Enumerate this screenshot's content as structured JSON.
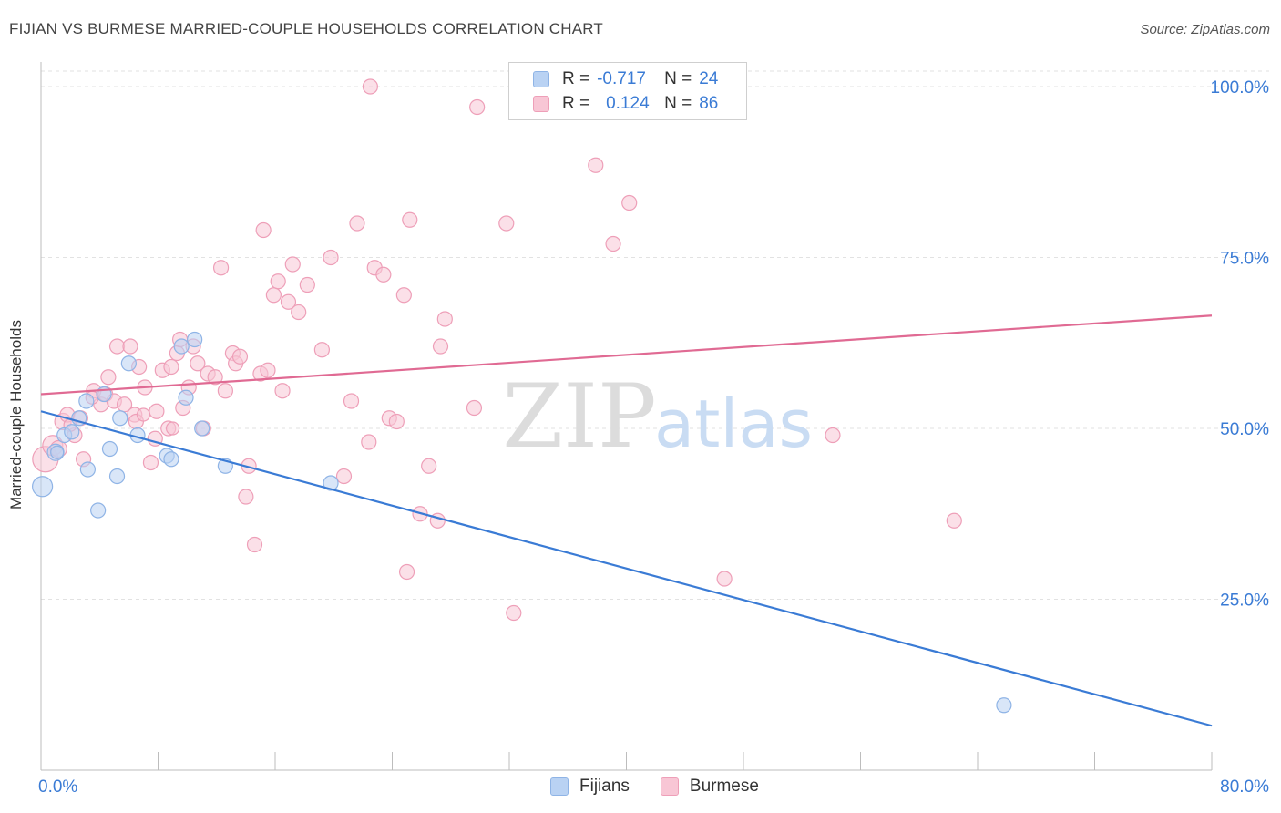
{
  "header": {
    "title": "FIJIAN VS BURMESE MARRIED-COUPLE HOUSEHOLDS CORRELATION CHART",
    "source": "Source: ZipAtlas.com"
  },
  "watermark": {
    "zip": "ZIP",
    "atlas": "atlas"
  },
  "legend": {
    "r_label": "R =",
    "n_label": "N =",
    "rows": [
      {
        "name": "Fijians",
        "r": "-0.717",
        "n": "24"
      },
      {
        "name": "Burmese",
        "r": "0.124",
        "n": "86"
      }
    ]
  },
  "colors": {
    "fijians_fill": "#b9d2f3",
    "fijians_stroke": "#8fb4e6",
    "fijians_line": "#3a7bd5",
    "burmese_fill": "#f8c6d5",
    "burmese_stroke": "#ee9fb8",
    "burmese_line": "#e06a93",
    "axis_label": "#3a7bd5"
  },
  "chart_data": {
    "type": "scatter",
    "title": "FIJIAN VS BURMESE MARRIED-COUPLE HOUSEHOLDS CORRELATION CHART",
    "xlabel": "",
    "ylabel": "Married-couple Households",
    "xlim": [
      0,
      80
    ],
    "ylim": [
      0,
      102
    ],
    "x_tick_labels": [
      "0.0%",
      "80.0%"
    ],
    "y_ticks": [
      {
        "value": 25,
        "label": "25.0%"
      },
      {
        "value": 50,
        "label": "50.0%"
      },
      {
        "value": 75,
        "label": "75.0%"
      },
      {
        "value": 100,
        "label": "100.0%"
      }
    ],
    "series": [
      {
        "name": "Fijians",
        "trend": {
          "x": [
            0,
            80
          ],
          "y": [
            52.5,
            6.5
          ]
        },
        "points": [
          [
            0.1,
            41.5,
            11
          ],
          [
            1.0,
            46.5,
            9
          ],
          [
            1.6,
            49.0,
            8
          ],
          [
            2.1,
            49.5,
            8
          ],
          [
            2.6,
            51.5,
            8
          ],
          [
            3.1,
            54.0,
            8
          ],
          [
            3.2,
            44.0,
            8
          ],
          [
            3.9,
            38.0,
            8
          ],
          [
            4.3,
            55.0,
            8
          ],
          [
            4.7,
            47.0,
            8
          ],
          [
            5.2,
            43.0,
            8
          ],
          [
            5.4,
            51.5,
            8
          ],
          [
            6.0,
            59.5,
            8
          ],
          [
            6.6,
            49.0,
            8
          ],
          [
            8.6,
            46.0,
            8
          ],
          [
            8.9,
            45.5,
            8
          ],
          [
            9.6,
            62.0,
            8
          ],
          [
            9.9,
            54.5,
            8
          ],
          [
            10.5,
            63.0,
            8
          ],
          [
            11.0,
            50.0,
            8
          ],
          [
            12.6,
            44.5,
            8
          ],
          [
            19.8,
            42.0,
            8
          ],
          [
            65.8,
            9.5,
            8
          ],
          [
            1.1,
            46.5,
            7
          ]
        ]
      },
      {
        "name": "Burmese",
        "trend": {
          "x": [
            0,
            80
          ],
          "y": [
            55.0,
            66.5
          ]
        },
        "points": [
          [
            0.3,
            45.5,
            14
          ],
          [
            0.8,
            47.5,
            11
          ],
          [
            1.2,
            47.0,
            9
          ],
          [
            1.5,
            51.0,
            9
          ],
          [
            1.8,
            52.0,
            8
          ],
          [
            2.3,
            49.0,
            8
          ],
          [
            2.7,
            51.5,
            8
          ],
          [
            2.9,
            45.5,
            8
          ],
          [
            3.6,
            55.5,
            8
          ],
          [
            4.1,
            53.5,
            8
          ],
          [
            4.4,
            55.0,
            8
          ],
          [
            4.6,
            57.5,
            8
          ],
          [
            5.0,
            54.0,
            8
          ],
          [
            5.2,
            62.0,
            8
          ],
          [
            5.7,
            53.5,
            8
          ],
          [
            6.1,
            62.0,
            8
          ],
          [
            6.4,
            52.0,
            8
          ],
          [
            6.5,
            51.0,
            8
          ],
          [
            6.7,
            59.0,
            8
          ],
          [
            7.1,
            56.0,
            8
          ],
          [
            7.5,
            45.0,
            8
          ],
          [
            7.8,
            48.5,
            8
          ],
          [
            7.9,
            52.5,
            8
          ],
          [
            8.3,
            58.5,
            8
          ],
          [
            8.7,
            50.0,
            8
          ],
          [
            8.9,
            59.0,
            8
          ],
          [
            9.3,
            61.0,
            8
          ],
          [
            9.5,
            63.0,
            8
          ],
          [
            9.7,
            53.0,
            8
          ],
          [
            10.1,
            56.0,
            8
          ],
          [
            10.4,
            62.0,
            8
          ],
          [
            10.7,
            59.5,
            8
          ],
          [
            11.1,
            50.0,
            8
          ],
          [
            11.4,
            58.0,
            8
          ],
          [
            11.9,
            57.5,
            8
          ],
          [
            12.3,
            73.5,
            8
          ],
          [
            12.6,
            55.5,
            8
          ],
          [
            13.1,
            61.0,
            8
          ],
          [
            13.3,
            59.5,
            8
          ],
          [
            13.6,
            60.5,
            8
          ],
          [
            14.0,
            40.0,
            8
          ],
          [
            14.2,
            44.5,
            8
          ],
          [
            14.6,
            33.0,
            8
          ],
          [
            15.0,
            58.0,
            8
          ],
          [
            15.2,
            79.0,
            8
          ],
          [
            15.5,
            58.5,
            8
          ],
          [
            15.9,
            69.5,
            8
          ],
          [
            16.2,
            71.5,
            8
          ],
          [
            16.5,
            55.5,
            8
          ],
          [
            16.9,
            68.5,
            8
          ],
          [
            17.2,
            74.0,
            8
          ],
          [
            17.6,
            67.0,
            8
          ],
          [
            18.2,
            71.0,
            8
          ],
          [
            19.2,
            61.5,
            8
          ],
          [
            19.8,
            75.0,
            8
          ],
          [
            20.7,
            43.0,
            8
          ],
          [
            21.2,
            54.0,
            8
          ],
          [
            21.6,
            80.0,
            8
          ],
          [
            22.4,
            48.0,
            8
          ],
          [
            22.5,
            100.0,
            8
          ],
          [
            22.8,
            73.5,
            8
          ],
          [
            23.4,
            72.5,
            8
          ],
          [
            23.8,
            51.5,
            8
          ],
          [
            24.3,
            51.0,
            8
          ],
          [
            24.8,
            69.5,
            8
          ],
          [
            25.0,
            29.0,
            8
          ],
          [
            25.2,
            80.5,
            8
          ],
          [
            25.9,
            37.5,
            8
          ],
          [
            26.5,
            44.5,
            8
          ],
          [
            27.1,
            36.5,
            8
          ],
          [
            27.3,
            62.0,
            8
          ],
          [
            27.6,
            66.0,
            8
          ],
          [
            29.6,
            53.0,
            8
          ],
          [
            29.8,
            97.0,
            8
          ],
          [
            31.8,
            80.0,
            8
          ],
          [
            32.3,
            23.0,
            8
          ],
          [
            37.9,
            88.5,
            8
          ],
          [
            39.1,
            77.0,
            8
          ],
          [
            40.2,
            83.0,
            8
          ],
          [
            46.7,
            28.0,
            8
          ],
          [
            54.1,
            49.0,
            8
          ],
          [
            62.4,
            36.5,
            8
          ],
          [
            7.0,
            52.0,
            7
          ],
          [
            9.0,
            50.0,
            7
          ],
          [
            3.5,
            54.5,
            7
          ],
          [
            2.0,
            50.5,
            7
          ]
        ]
      }
    ]
  },
  "bottom_legend": [
    "Fijians",
    "Burmese"
  ]
}
